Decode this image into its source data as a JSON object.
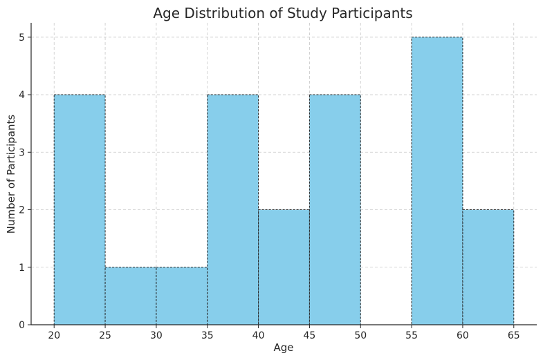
{
  "chart_data": {
    "type": "bar",
    "title": "Age Distribution of Study Participants",
    "xlabel": "Age",
    "ylabel": "Number of Participants",
    "bins": [
      {
        "start": 20,
        "end": 25,
        "count": 4
      },
      {
        "start": 25,
        "end": 30,
        "count": 1
      },
      {
        "start": 30,
        "end": 35,
        "count": 1
      },
      {
        "start": 35,
        "end": 40,
        "count": 4
      },
      {
        "start": 40,
        "end": 45,
        "count": 2
      },
      {
        "start": 45,
        "end": 50,
        "count": 4
      },
      {
        "start": 50,
        "end": 55,
        "count": 0
      },
      {
        "start": 55,
        "end": 60,
        "count": 5
      },
      {
        "start": 60,
        "end": 65,
        "count": 2
      }
    ],
    "xticks": [
      20,
      25,
      30,
      35,
      40,
      45,
      50,
      55,
      60,
      65
    ],
    "yticks": [
      0,
      1,
      2,
      3,
      4,
      5
    ],
    "xlim": [
      17.75,
      67.25
    ],
    "ylim": [
      0,
      5.25
    ],
    "grid": true,
    "bar_color": "#87ceeb",
    "edge_color": "#262626"
  }
}
